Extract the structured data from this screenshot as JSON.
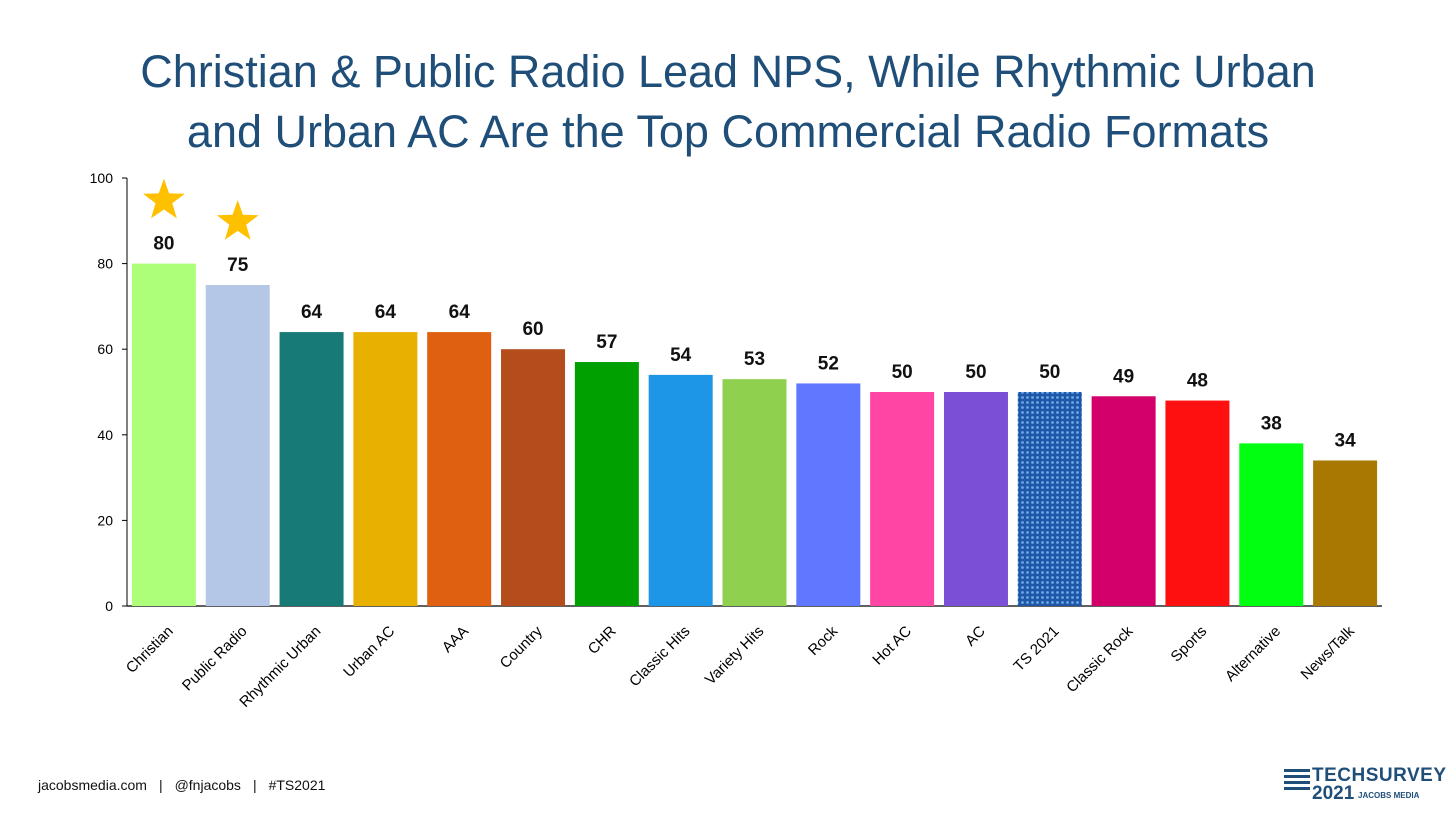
{
  "title_lines": [
    "Christian & Public Radio Lead NPS, While Rhythmic Urban",
    "and Urban AC Are the Top Commercial Radio Formats"
  ],
  "footer": {
    "site": "jacobsmedia.com",
    "handle": "@fnjacobs",
    "hashtag": "#TS2021"
  },
  "logo": {
    "brand": "TECHSURVEY",
    "year": "2021",
    "sub": "JACOBS MEDIA"
  },
  "chart_data": {
    "type": "bar",
    "categories": [
      "Christian",
      "Public Radio",
      "Rhythmic Urban",
      "Urban AC",
      "AAA",
      "Country",
      "CHR",
      "Classic Hits",
      "Variety Hits",
      "Rock",
      "Hot AC",
      "AC",
      "TS 2021",
      "Classic Rock",
      "Sports",
      "Alternative",
      "News/Talk"
    ],
    "values": [
      80,
      75,
      64,
      64,
      64,
      60,
      57,
      54,
      53,
      52,
      50,
      50,
      50,
      49,
      48,
      38,
      34
    ],
    "colors": [
      "#adff7a",
      "#b4c7e7",
      "#177a77",
      "#e8b000",
      "#de6010",
      "#b54c1b",
      "#00a000",
      "#1e96e8",
      "#8fd14f",
      "#6077ff",
      "#ff46a5",
      "#7b4fd6",
      "#2f6fc0",
      "#d3006b",
      "#ff1010",
      "#00ff10",
      "#a87800"
    ],
    "patterned": [
      "TS 2021"
    ],
    "starred": [
      "Christian",
      "Public Radio"
    ],
    "star_color": "#ffc000",
    "ylim": [
      0,
      100
    ],
    "yticks": [
      0,
      20,
      40,
      60,
      80,
      100
    ],
    "grid": false,
    "legend": "none",
    "title": "",
    "xlabel": "",
    "ylabel": ""
  }
}
